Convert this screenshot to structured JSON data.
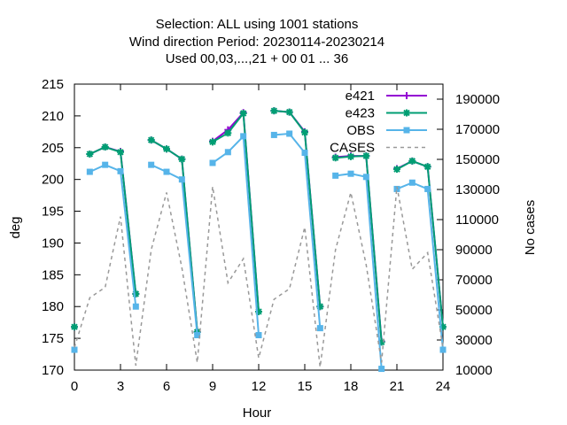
{
  "chart_data": {
    "type": "line",
    "title_lines": [
      "Selection: ALL using  1001 stations",
      "Wind direction   Period: 20230114-20230214",
      "Used  00,03,...,21  + 00 01 ... 36"
    ],
    "xlabel": "Hour",
    "ylabel": "deg",
    "y2label": "No cases",
    "xlim": [
      0,
      24
    ],
    "ylim": [
      170,
      215
    ],
    "y2lim": [
      10000,
      200000
    ],
    "xticks": [
      "0",
      "3",
      "6",
      "9",
      "12",
      "15",
      "18",
      "21",
      "24"
    ],
    "yticks": [
      "170",
      "175",
      "180",
      "185",
      "190",
      "195",
      "200",
      "205",
      "210",
      "215"
    ],
    "y2ticks": [
      "10000",
      "30000",
      "50000",
      "70000",
      "90000",
      "110000",
      "130000",
      "150000",
      "170000",
      "190000"
    ],
    "grid": false,
    "legend_position": "top-right",
    "series": [
      {
        "name": "e421",
        "color": "#9400d3",
        "marker": "plus",
        "axis": "y1",
        "segments": [
          [
            [
              0,
              176.8
            ]
          ],
          [
            [
              1,
              204.0
            ],
            [
              2,
              205.1
            ],
            [
              3,
              204.4
            ],
            [
              4,
              182.0
            ]
          ],
          [
            [
              5,
              206.2
            ],
            [
              6,
              204.8
            ],
            [
              7,
              203.2
            ],
            [
              8,
              176.0
            ]
          ],
          [
            [
              9,
              206.0
            ],
            [
              10,
              207.8
            ],
            [
              11,
              210.5
            ],
            [
              12,
              179.2
            ]
          ],
          [
            [
              13,
              210.8
            ],
            [
              14,
              210.6
            ],
            [
              15,
              207.5
            ],
            [
              16,
              180.0
            ]
          ],
          [
            [
              17,
              203.5
            ],
            [
              18,
              203.7
            ],
            [
              19,
              203.7
            ],
            [
              20,
              174.5
            ]
          ],
          [
            [
              21,
              201.7
            ],
            [
              22,
              202.9
            ],
            [
              23,
              202.0
            ],
            [
              24,
              176.8
            ]
          ]
        ]
      },
      {
        "name": "e423",
        "color": "#009e73",
        "marker": "star",
        "axis": "y1",
        "segments": [
          [
            [
              0,
              176.8
            ]
          ],
          [
            [
              1,
              204.0
            ],
            [
              2,
              205.1
            ],
            [
              3,
              204.3
            ],
            [
              4,
              182.0
            ]
          ],
          [
            [
              5,
              206.2
            ],
            [
              6,
              204.8
            ],
            [
              7,
              203.2
            ],
            [
              8,
              176.0
            ]
          ],
          [
            [
              9,
              205.9
            ],
            [
              10,
              207.3
            ],
            [
              11,
              210.4
            ],
            [
              12,
              179.2
            ]
          ],
          [
            [
              13,
              210.8
            ],
            [
              14,
              210.6
            ],
            [
              15,
              207.4
            ],
            [
              16,
              180.0
            ]
          ],
          [
            [
              17,
              203.4
            ],
            [
              18,
              203.6
            ],
            [
              19,
              203.7
            ],
            [
              20,
              174.4
            ]
          ],
          [
            [
              21,
              201.6
            ],
            [
              22,
              202.9
            ],
            [
              23,
              202.0
            ],
            [
              24,
              176.8
            ]
          ]
        ]
      },
      {
        "name": "OBS",
        "color": "#56b4e9",
        "marker": "box",
        "axis": "y1",
        "segments": [
          [
            [
              0,
              173.2
            ]
          ],
          [
            [
              1,
              201.2
            ],
            [
              2,
              202.3
            ],
            [
              3,
              201.3
            ],
            [
              4,
              180.0
            ]
          ],
          [
            [
              5,
              202.3
            ],
            [
              6,
              201.2
            ],
            [
              7,
              200.0
            ],
            [
              8,
              175.5
            ]
          ],
          [
            [
              9,
              202.6
            ],
            [
              10,
              204.3
            ],
            [
              11,
              206.8
            ],
            [
              12,
              175.5
            ]
          ],
          [
            [
              13,
              207.0
            ],
            [
              14,
              207.2
            ],
            [
              15,
              204.2
            ],
            [
              16,
              176.6
            ]
          ],
          [
            [
              17,
              200.6
            ],
            [
              18,
              200.9
            ],
            [
              19,
              200.4
            ],
            [
              20,
              170.2
            ]
          ],
          [
            [
              21,
              198.5
            ],
            [
              22,
              199.5
            ],
            [
              23,
              198.5
            ],
            [
              24,
              173.2
            ]
          ]
        ]
      },
      {
        "name": "CASES",
        "color": "#999999",
        "marker": "none",
        "dashed": true,
        "axis": "y2",
        "points": [
          [
            0,
            25000
          ],
          [
            1,
            58000
          ],
          [
            2,
            65000
          ],
          [
            3,
            112000
          ],
          [
            4,
            13000
          ],
          [
            5,
            90000
          ],
          [
            6,
            128000
          ],
          [
            7,
            78000
          ],
          [
            8,
            15000
          ],
          [
            9,
            132000
          ],
          [
            10,
            68000
          ],
          [
            11,
            84000
          ],
          [
            12,
            18000
          ],
          [
            13,
            57000
          ],
          [
            14,
            64000
          ],
          [
            15,
            105000
          ],
          [
            16,
            12000
          ],
          [
            17,
            90000
          ],
          [
            18,
            128000
          ],
          [
            19,
            80000
          ],
          [
            20,
            15000
          ],
          [
            21,
            132000
          ],
          [
            22,
            77000
          ],
          [
            23,
            88000
          ],
          [
            24,
            25000
          ]
        ]
      }
    ]
  }
}
